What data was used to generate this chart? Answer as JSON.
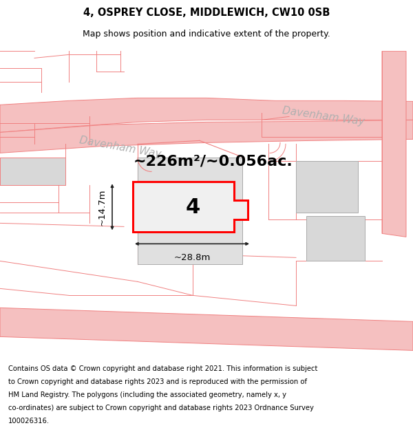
{
  "title_line1": "4, OSPREY CLOSE, MIDDLEWICH, CW10 0SB",
  "title_line2": "Map shows position and indicative extent of the property.",
  "area_text": "~226m²/~0.056ac.",
  "dim_width": "~28.8m",
  "dim_height": "~14.7m",
  "property_number": "4",
  "davenham_way_text": "Davenham Way",
  "footer_text": "Contains OS data © Crown copyright and database right 2021. This information is subject to Crown copyright and database rights 2023 and is reproduced with the permission of HM Land Registry. The polygons (including the associated geometry, namely x, y co-ordinates) are subject to Crown copyright and database rights 2023 Ordnance Survey 100026316.",
  "bg_color": "#ffffff",
  "road_color": "#f5c0c0",
  "road_outline_color": "#f08080",
  "property_outline_color": "#ff0000",
  "property_fill_color": "#f0f0f0",
  "building_fill_color": "#d8d8d8",
  "plot_fill_color": "#ebebeb",
  "dim_line_color": "#222222",
  "text_color": "#000000",
  "road_label_color": "#b0b0b0",
  "title_fontsize": 10.5,
  "subtitle_fontsize": 9,
  "area_fontsize": 16,
  "dim_fontsize": 9.5,
  "property_num_fontsize": 22,
  "footer_fontsize": 7.2,
  "davenham_fontsize": 11
}
